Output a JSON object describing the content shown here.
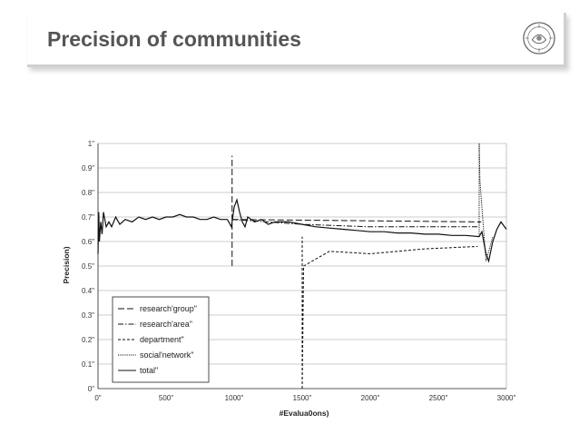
{
  "slide": {
    "title": "Precision of communities",
    "logo": "university-seal-icon"
  },
  "chart_data": {
    "type": "line",
    "title": "",
    "xlabel": "#Evalua0ons)",
    "ylabel": "Precision)",
    "xlim": [
      0,
      3000
    ],
    "ylim": [
      0,
      1
    ],
    "grid": true,
    "legend_position": "bottom-left",
    "x_ticks": [
      "0\"",
      "500\"",
      "1000\"",
      "1500\"",
      "2000\"",
      "2500\"",
      "3000\""
    ],
    "x_tick_values": [
      0,
      500,
      1000,
      1500,
      2000,
      2500,
      3000
    ],
    "y_ticks": [
      "0\"",
      "0.1\"",
      "0.2\"",
      "0.3\"",
      "0.4\"",
      "0.5\"",
      "0.6\"",
      "0.7\"",
      "0.8\"",
      "0.9\"",
      "1\""
    ],
    "y_tick_values": [
      0,
      0.1,
      0.2,
      0.3,
      0.4,
      0.5,
      0.6,
      0.7,
      0.8,
      0.9,
      1.0
    ],
    "series": [
      {
        "name": "research'group\"",
        "dash": "long-dash",
        "x": [
          0,
          980,
          985,
          2800,
          2815
        ],
        "y": [
          null,
          null,
          0.69,
          0.68,
          0.68
        ]
      },
      {
        "name": "research'area\"",
        "dash": "dash-dot",
        "x": [
          985,
          1500,
          2000,
          2500,
          2800
        ],
        "y": [
          0.69,
          0.67,
          0.66,
          0.66,
          0.66
        ]
      },
      {
        "name": "department\"",
        "dash": "short-dash",
        "x": [
          1500,
          1510,
          1700,
          2000,
          2400,
          2790
        ],
        "y": [
          0.0,
          0.5,
          0.56,
          0.55,
          0.57,
          0.58
        ]
      },
      {
        "name": "social'network\"",
        "dash": "dotted",
        "x": [
          2800,
          2805,
          2850,
          2900
        ],
        "y": [
          1.0,
          0.85,
          0.52,
          0.62
        ]
      },
      {
        "name": "total\"",
        "dash": "solid",
        "x": [
          0,
          5,
          10,
          20,
          30,
          40,
          60,
          80,
          100,
          130,
          160,
          200,
          250,
          300,
          350,
          400,
          450,
          500,
          550,
          600,
          650,
          700,
          750,
          800,
          850,
          900,
          950,
          980,
          1000,
          1020,
          1040,
          1060,
          1080,
          1100,
          1150,
          1200,
          1250,
          1300,
          1400,
          1500,
          1600,
          1700,
          1800,
          1900,
          2000,
          2100,
          2200,
          2300,
          2400,
          2500,
          2600,
          2700,
          2800,
          2820,
          2850,
          2870,
          2900,
          2930,
          2960,
          3000
        ],
        "y": [
          0.55,
          0.72,
          0.6,
          0.68,
          0.63,
          0.72,
          0.66,
          0.68,
          0.66,
          0.7,
          0.67,
          0.69,
          0.68,
          0.7,
          0.69,
          0.7,
          0.69,
          0.7,
          0.7,
          0.71,
          0.7,
          0.7,
          0.69,
          0.69,
          0.7,
          0.69,
          0.69,
          0.66,
          0.74,
          0.77,
          0.72,
          0.68,
          0.66,
          0.7,
          0.68,
          0.69,
          0.67,
          0.68,
          0.68,
          0.67,
          0.66,
          0.655,
          0.65,
          0.645,
          0.64,
          0.64,
          0.635,
          0.635,
          0.63,
          0.63,
          0.625,
          0.625,
          0.62,
          0.64,
          0.55,
          0.52,
          0.6,
          0.65,
          0.68,
          0.65
        ]
      }
    ],
    "legend": [
      "research'group\"",
      "research'area\"",
      "department\"",
      "social'network\"",
      "total\""
    ]
  }
}
